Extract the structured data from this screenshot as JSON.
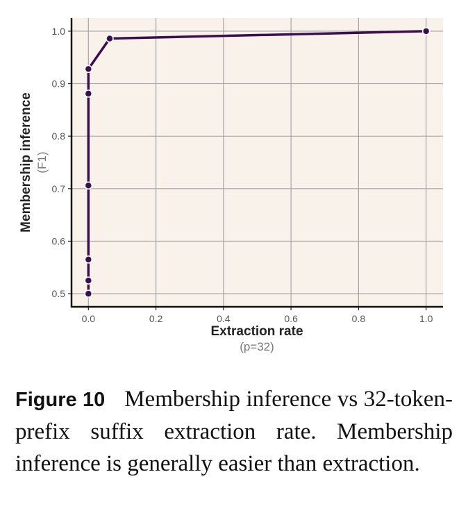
{
  "chart_data": {
    "type": "line",
    "xlabel": "Extraction rate",
    "xlabel_sub": "(p=32)",
    "ylabel": "Membership inference",
    "ylabel_sub": "(F1)",
    "xlim": [
      -0.05,
      1.05
    ],
    "ylim": [
      0.475,
      1.025
    ],
    "xticks": [
      0.0,
      0.2,
      0.4,
      0.6,
      0.8,
      1.0
    ],
    "xtick_labels": [
      "0.0",
      "0.2",
      "0.4",
      "0.6",
      "0.8",
      "1.0"
    ],
    "yticks": [
      0.5,
      0.6,
      0.7,
      0.8,
      0.9,
      1.0
    ],
    "ytick_labels": [
      "0.5",
      "0.6",
      "0.7",
      "0.8",
      "0.9",
      "1.0"
    ],
    "grid": true,
    "series": [
      {
        "color": "#3b0f4f",
        "x": [
          0.0,
          0.0,
          0.0,
          0.0,
          0.0,
          0.0,
          0.063,
          1.0
        ],
        "y": [
          0.5,
          0.525,
          0.565,
          0.706,
          0.881,
          0.928,
          0.986,
          1.0
        ]
      }
    ],
    "background": "#f8f2ea"
  },
  "caption": {
    "label": "Figure 10",
    "text": "Membership inference vs 32-token-prefix suffix extraction rate. Membership inference is generally easier than extraction."
  }
}
